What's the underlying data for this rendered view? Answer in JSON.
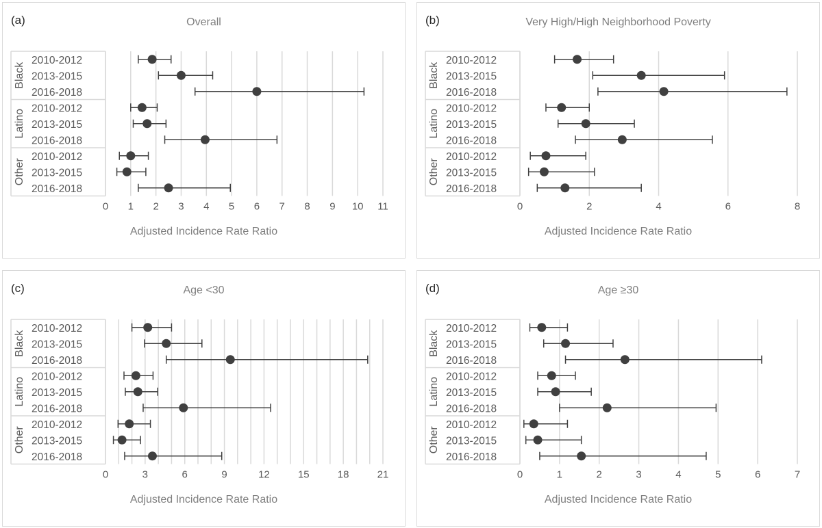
{
  "figure": {
    "colors": {
      "marker": "#404040",
      "grid": "#d9d9d9",
      "text": "#595959",
      "title": "#7f7f7f",
      "border": "#d9d9d9"
    }
  },
  "chart_data": [
    {
      "type": "forest",
      "panel_label": "(a)",
      "title": "Overall",
      "xlabel": "Adjusted Incidence Rate Ratio",
      "xlim": [
        0,
        11
      ],
      "xticks": [
        0,
        1,
        2,
        3,
        4,
        5,
        6,
        7,
        8,
        9,
        10,
        11
      ],
      "tick_labels": [
        "0",
        "1",
        "2",
        "3",
        "4",
        "5",
        "6",
        "7",
        "8",
        "9",
        "10",
        "11"
      ],
      "groups": [
        {
          "name": "Black",
          "rows": [
            {
              "period": "2010-2012",
              "estimate": 1.85,
              "lower": 1.3,
              "upper": 2.6
            },
            {
              "period": "2013-2015",
              "estimate": 3.0,
              "lower": 2.1,
              "upper": 4.25
            },
            {
              "period": "2016-2018",
              "estimate": 6.0,
              "lower": 3.55,
              "upper": 10.25
            }
          ]
        },
        {
          "name": "Latino",
          "rows": [
            {
              "period": "2010-2012",
              "estimate": 1.45,
              "lower": 1.0,
              "upper": 2.05
            },
            {
              "period": "2013-2015",
              "estimate": 1.65,
              "lower": 1.1,
              "upper": 2.4
            },
            {
              "period": "2016-2018",
              "estimate": 3.95,
              "lower": 2.35,
              "upper": 6.8
            }
          ]
        },
        {
          "name": "Other",
          "rows": [
            {
              "period": "2010-2012",
              "estimate": 1.0,
              "lower": 0.55,
              "upper": 1.7
            },
            {
              "period": "2013-2015",
              "estimate": 0.85,
              "lower": 0.45,
              "upper": 1.6
            },
            {
              "period": "2016-2018",
              "estimate": 2.5,
              "lower": 1.3,
              "upper": 4.95
            }
          ]
        }
      ]
    },
    {
      "type": "forest",
      "panel_label": "(b)",
      "title": "Very High/High Neighborhood Poverty",
      "xlabel": "Adjusted Incidence Rate Ratio",
      "xlim": [
        0,
        8
      ],
      "xticks": [
        0,
        2,
        4,
        6,
        8
      ],
      "tick_labels": [
        "0",
        "2",
        "4",
        "6",
        "8"
      ],
      "groups": [
        {
          "name": "Black",
          "rows": [
            {
              "period": "2010-2012",
              "estimate": 1.65,
              "lower": 1.0,
              "upper": 2.7
            },
            {
              "period": "2013-2015",
              "estimate": 3.5,
              "lower": 2.1,
              "upper": 5.9
            },
            {
              "period": "2016-2018",
              "estimate": 4.15,
              "lower": 2.25,
              "upper": 7.7
            }
          ]
        },
        {
          "name": "Latino",
          "rows": [
            {
              "period": "2010-2012",
              "estimate": 1.2,
              "lower": 0.75,
              "upper": 2.0
            },
            {
              "period": "2013-2015",
              "estimate": 1.9,
              "lower": 1.1,
              "upper": 3.3
            },
            {
              "period": "2016-2018",
              "estimate": 2.95,
              "lower": 1.6,
              "upper": 5.55
            }
          ]
        },
        {
          "name": "Other",
          "rows": [
            {
              "period": "2010-2012",
              "estimate": 0.75,
              "lower": 0.3,
              "upper": 1.9
            },
            {
              "period": "2013-2015",
              "estimate": 0.7,
              "lower": 0.25,
              "upper": 2.15
            },
            {
              "period": "2016-2018",
              "estimate": 1.3,
              "lower": 0.5,
              "upper": 3.5
            }
          ]
        }
      ]
    },
    {
      "type": "forest",
      "panel_label": "(c)",
      "title": "Age <30",
      "xlabel": "Adjusted Incidence Rate Ratio",
      "xlim": [
        0,
        21
      ],
      "xticks": [
        0,
        1,
        2,
        3,
        4,
        5,
        6,
        7,
        8,
        9,
        10,
        11,
        12,
        13,
        14,
        15,
        16,
        17,
        18,
        19,
        20,
        21
      ],
      "tick_labels": [
        "0",
        "",
        "",
        "3",
        "",
        "",
        "6",
        "",
        "",
        "9",
        "",
        "",
        "12",
        "",
        "",
        "15",
        "",
        "",
        "18",
        "",
        "",
        "21"
      ],
      "groups": [
        {
          "name": "Black",
          "rows": [
            {
              "period": "2010-2012",
              "estimate": 3.2,
              "lower": 2.0,
              "upper": 5.0
            },
            {
              "period": "2013-2015",
              "estimate": 4.6,
              "lower": 2.95,
              "upper": 7.3
            },
            {
              "period": "2016-2018",
              "estimate": 9.45,
              "lower": 4.6,
              "upper": 19.85
            }
          ]
        },
        {
          "name": "Latino",
          "rows": [
            {
              "period": "2010-2012",
              "estimate": 2.3,
              "lower": 1.4,
              "upper": 3.6
            },
            {
              "period": "2013-2015",
              "estimate": 2.45,
              "lower": 1.5,
              "upper": 3.95
            },
            {
              "period": "2016-2018",
              "estimate": 5.9,
              "lower": 2.85,
              "upper": 12.5
            }
          ]
        },
        {
          "name": "Other",
          "rows": [
            {
              "period": "2010-2012",
              "estimate": 1.8,
              "lower": 0.95,
              "upper": 3.4
            },
            {
              "period": "2013-2015",
              "estimate": 1.25,
              "lower": 0.6,
              "upper": 2.65
            },
            {
              "period": "2016-2018",
              "estimate": 3.55,
              "lower": 1.45,
              "upper": 8.8
            }
          ]
        }
      ]
    },
    {
      "type": "forest",
      "panel_label": "(d)",
      "title": "Age ≥30",
      "xlabel": "Adjusted Incidence Rate Ratio",
      "xlim": [
        0,
        7
      ],
      "xticks": [
        0,
        1,
        2,
        3,
        4,
        5,
        6,
        7
      ],
      "tick_labels": [
        "0",
        "1",
        "2",
        "3",
        "4",
        "5",
        "6",
        "7"
      ],
      "groups": [
        {
          "name": "Black",
          "rows": [
            {
              "period": "2010-2012",
              "estimate": 0.55,
              "lower": 0.25,
              "upper": 1.2
            },
            {
              "period": "2013-2015",
              "estimate": 1.15,
              "lower": 0.6,
              "upper": 2.35
            },
            {
              "period": "2016-2018",
              "estimate": 2.65,
              "lower": 1.15,
              "upper": 6.1
            }
          ]
        },
        {
          "name": "Latino",
          "rows": [
            {
              "period": "2010-2012",
              "estimate": 0.8,
              "lower": 0.45,
              "upper": 1.4
            },
            {
              "period": "2013-2015",
              "estimate": 0.9,
              "lower": 0.45,
              "upper": 1.8
            },
            {
              "period": "2016-2018",
              "estimate": 2.2,
              "lower": 1.0,
              "upper": 4.95
            }
          ]
        },
        {
          "name": "Other",
          "rows": [
            {
              "period": "2010-2012",
              "estimate": 0.35,
              "lower": 0.1,
              "upper": 1.2
            },
            {
              "period": "2013-2015",
              "estimate": 0.45,
              "lower": 0.15,
              "upper": 1.55
            },
            {
              "period": "2016-2018",
              "estimate": 1.55,
              "lower": 0.5,
              "upper": 4.7
            }
          ]
        }
      ]
    }
  ]
}
